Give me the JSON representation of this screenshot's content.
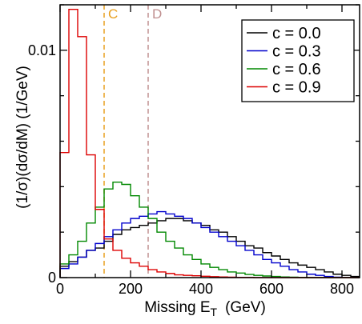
{
  "chart_data": {
    "type": "line",
    "step": true,
    "xlabel": "Missing E",
    "xlabel_sub": "T",
    "xlabel_unit": "(GeV)",
    "ylabel": "(1/σ)(dσ/dM)  (1/GeV)",
    "xlim": [
      0,
      850
    ],
    "ylim": [
      0,
      0.012
    ],
    "x_ticks": [
      0,
      200,
      400,
      600,
      800
    ],
    "x_tick_labels": [
      "0",
      "200",
      "400",
      "600",
      "800"
    ],
    "y_ticks": [
      0,
      0.01
    ],
    "y_tick_labels": [
      "0",
      "0.01"
    ],
    "bin_width": 25,
    "bin_edges_start": 0,
    "legend_position": "top-right",
    "series": [
      {
        "name": "c = 0.0",
        "color": "#000000",
        "values": [
          0.0005,
          0.0007,
          0.0009,
          0.0012,
          0.0013,
          0.0016,
          0.0019,
          0.0021,
          0.0022,
          0.0023,
          0.0024,
          0.0025,
          0.0026,
          0.0026,
          0.0025,
          0.0024,
          0.0023,
          0.0021,
          0.002,
          0.0018,
          0.0016,
          0.0014,
          0.0013,
          0.0011,
          0.00095,
          0.0008,
          0.00065,
          0.00055,
          0.00045,
          0.00035,
          0.00025,
          0.00015,
          0.0001,
          5e-05
        ]
      },
      {
        "name": "c = 0.3",
        "color": "#0000cc",
        "values": [
          0.0004,
          0.0006,
          0.0009,
          0.0012,
          0.0015,
          0.0018,
          0.0021,
          0.0024,
          0.0026,
          0.0027,
          0.0028,
          0.0029,
          0.0028,
          0.0027,
          0.0026,
          0.0024,
          0.0022,
          0.002,
          0.0018,
          0.0016,
          0.0014,
          0.0012,
          0.001,
          0.0008,
          0.00065,
          0.0005,
          0.00035,
          0.00025,
          0.00015,
          0.0001,
          5e-05,
          2e-05,
          1e-05,
          0
        ]
      },
      {
        "name": "c = 0.6",
        "color": "#008800",
        "values": [
          0.0006,
          0.001,
          0.0016,
          0.0024,
          0.0031,
          0.0039,
          0.0042,
          0.0041,
          0.0036,
          0.0031,
          0.0026,
          0.002,
          0.0016,
          0.0013,
          0.001,
          0.0008,
          0.0006,
          0.00045,
          0.00035,
          0.00025,
          0.0002,
          0.00014,
          0.0001,
          7e-05,
          5e-05,
          3e-05,
          2e-05,
          1e-05,
          0,
          0,
          0,
          0,
          0,
          0
        ]
      },
      {
        "name": "c = 0.9",
        "color": "#dd0000",
        "values": [
          0.0055,
          0.0118,
          0.0106,
          0.0054,
          0.003,
          0.0017,
          0.0012,
          0.00085,
          0.00065,
          0.0005,
          0.00035,
          0.00025,
          0.00018,
          0.00012,
          0.0001,
          8e-05,
          6e-05,
          4e-05,
          3e-05,
          2e-05,
          1e-05,
          1e-05,
          0,
          0,
          0,
          0,
          0,
          0,
          0,
          0,
          0,
          0,
          0,
          0
        ]
      }
    ],
    "markers": [
      {
        "label": "C",
        "x": 125,
        "color": "#e8a020"
      },
      {
        "label": "D",
        "x": 250,
        "color": "#c09090"
      }
    ]
  }
}
